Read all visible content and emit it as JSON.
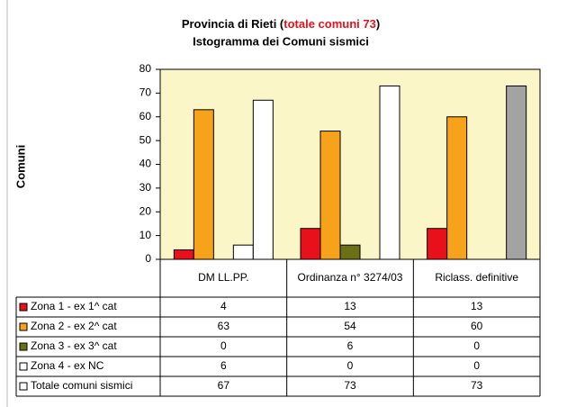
{
  "chart_data": {
    "type": "bar",
    "title": [
      "Provincia di Rieti (",
      "totale comuni 73",
      ")"
    ],
    "subtitle": "Istogramma dei Comuni sismici",
    "ylabel": "Comuni",
    "categories": [
      "DM LL.PP.",
      "Ordinanza n° 3274/03",
      "Riclass. definitive"
    ],
    "series": [
      {
        "name": "Zona 1 - ex 1^ cat",
        "color": "#e8101a",
        "values": [
          4,
          13,
          13
        ]
      },
      {
        "name": "Zona 2 - ex 2^ cat",
        "color": "#f7a21b",
        "values": [
          63,
          54,
          60
        ]
      },
      {
        "name": "Zona 3 - ex 3^ cat",
        "color": "#6b7012",
        "values": [
          0,
          6,
          0
        ]
      },
      {
        "name": "Zona 4 - ex NC",
        "color": "#ffffff",
        "values": [
          6,
          0,
          0
        ]
      },
      {
        "name": "Totale comuni sismici",
        "colors": [
          "#ffffff",
          "#ffffff",
          "#a3a3a3"
        ],
        "values": [
          67,
          73,
          73
        ]
      }
    ],
    "ylim": [
      0,
      80
    ],
    "yticks": [
      0,
      10,
      20,
      30,
      40,
      50,
      60,
      70,
      80
    ],
    "grid": false,
    "plot_background": "#fbf6c8"
  }
}
